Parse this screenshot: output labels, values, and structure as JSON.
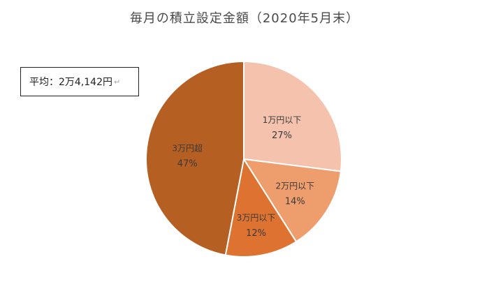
{
  "chart_data": {
    "type": "pie",
    "title": "毎月の積立設定金額（2020年5月末）",
    "annotation": "平均：2万4,142円",
    "slices": [
      {
        "label": "1万円以下",
        "value": 27,
        "value_label": "27%",
        "color": "#f4c2ad"
      },
      {
        "label": "2万円以下",
        "value": 14,
        "value_label": "14%",
        "color": "#ee9d6c"
      },
      {
        "label": "3万円以下",
        "value": 12,
        "value_label": "12%",
        "color": "#de7331"
      },
      {
        "label": "3万円超",
        "value": 47,
        "value_label": "47%",
        "color": "#b55f22"
      }
    ],
    "start_angle_deg": 0,
    "direction": "clockwise",
    "legend": "none"
  }
}
